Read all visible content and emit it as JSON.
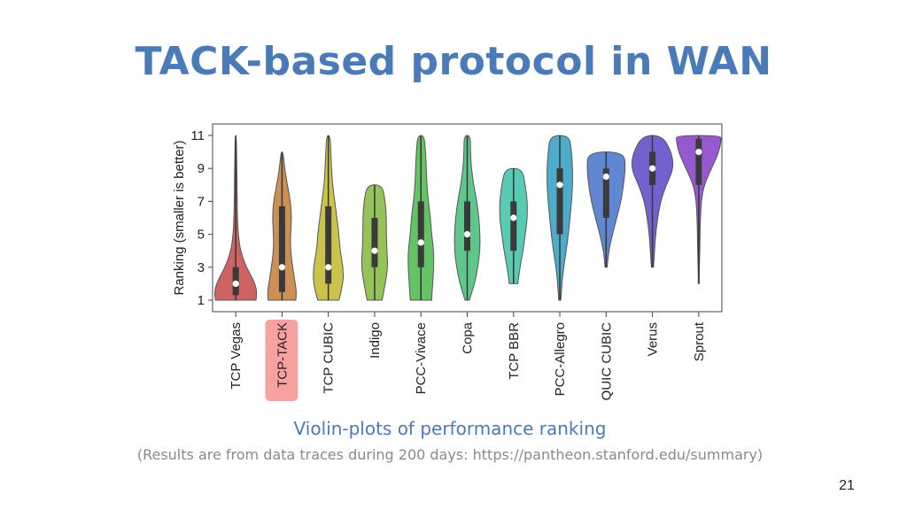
{
  "slide": {
    "title": "TACK-based protocol in WAN",
    "caption": "Violin-plots of performance ranking",
    "source": "(Results are from data traces during 200 days: https://pantheon.stanford.edu/summary)",
    "page_number": "21"
  },
  "chart_data": {
    "type": "violin",
    "title": "",
    "xlabel": "",
    "ylabel": "Ranking (smaller is better)",
    "ylim": [
      1,
      11
    ],
    "yticks": [
      1,
      3,
      5,
      7,
      9,
      11
    ],
    "grid": false,
    "highlighted_category": "TCP-TACK",
    "highlight_color": "#f7a1a1",
    "categories": [
      "TCP Vegas",
      "TCP-TACK",
      "TCP CUBIC",
      "Indigo",
      "PCC-Vivace",
      "Copa",
      "TCP BBR",
      "PCC-Allegro",
      "QUIC CUBIC",
      "Verus",
      "Sprout"
    ],
    "series": [
      {
        "category": "TCP Vegas",
        "color": "#cc5a5a",
        "median": 2,
        "q1": 1.3,
        "q3": 3,
        "min": 1,
        "max": 11,
        "density": [
          [
            1,
            0.95
          ],
          [
            1.5,
            1.0
          ],
          [
            2,
            0.9
          ],
          [
            2.5,
            0.72
          ],
          [
            3,
            0.5
          ],
          [
            4,
            0.22
          ],
          [
            5,
            0.12
          ],
          [
            6,
            0.08
          ],
          [
            7,
            0.07
          ],
          [
            8,
            0.06
          ],
          [
            9,
            0.05
          ],
          [
            10,
            0.04
          ],
          [
            11,
            0.02
          ]
        ]
      },
      {
        "category": "TCP-TACK",
        "color": "#c98a4b",
        "median": 3,
        "q1": 1.5,
        "q3": 6.7,
        "min": 1,
        "max": 10,
        "density": [
          [
            1,
            0.65
          ],
          [
            1.5,
            0.68
          ],
          [
            2,
            0.62
          ],
          [
            3,
            0.5
          ],
          [
            4,
            0.4
          ],
          [
            5,
            0.4
          ],
          [
            6,
            0.45
          ],
          [
            7,
            0.4
          ],
          [
            8,
            0.25
          ],
          [
            9,
            0.12
          ],
          [
            10,
            0.05
          ]
        ]
      },
      {
        "category": "TCP CUBIC",
        "color": "#c8c040",
        "median": 3,
        "q1": 2,
        "q3": 6.7,
        "min": 1,
        "max": 11,
        "density": [
          [
            1,
            0.5
          ],
          [
            2,
            0.7
          ],
          [
            3,
            0.7
          ],
          [
            4,
            0.55
          ],
          [
            5,
            0.5
          ],
          [
            6,
            0.4
          ],
          [
            7,
            0.3
          ],
          [
            8,
            0.2
          ],
          [
            9,
            0.15
          ],
          [
            10,
            0.12
          ],
          [
            11,
            0.08
          ]
        ]
      },
      {
        "category": "Indigo",
        "color": "#90c050",
        "median": 4,
        "q1": 3,
        "q3": 6,
        "min": 1,
        "max": 8,
        "density": [
          [
            1,
            0.35
          ],
          [
            2,
            0.5
          ],
          [
            3,
            0.62
          ],
          [
            4,
            0.58
          ],
          [
            5,
            0.55
          ],
          [
            6,
            0.55
          ],
          [
            7,
            0.5
          ],
          [
            8,
            0.35
          ]
        ]
      },
      {
        "category": "PCC-Vivace",
        "color": "#5cc05c",
        "median": 4.5,
        "q1": 3,
        "q3": 7,
        "min": 1,
        "max": 11,
        "density": [
          [
            1,
            0.5
          ],
          [
            2,
            0.55
          ],
          [
            3,
            0.6
          ],
          [
            4,
            0.6
          ],
          [
            5,
            0.5
          ],
          [
            6,
            0.45
          ],
          [
            7,
            0.35
          ],
          [
            8,
            0.28
          ],
          [
            9,
            0.25
          ],
          [
            10,
            0.22
          ],
          [
            11,
            0.15
          ]
        ]
      },
      {
        "category": "Copa",
        "color": "#55c585",
        "median": 5,
        "q1": 4,
        "q3": 7,
        "min": 1,
        "max": 11,
        "density": [
          [
            1,
            0.1
          ],
          [
            2,
            0.35
          ],
          [
            3,
            0.5
          ],
          [
            4,
            0.6
          ],
          [
            5,
            0.6
          ],
          [
            6,
            0.55
          ],
          [
            7,
            0.45
          ],
          [
            8,
            0.3
          ],
          [
            9,
            0.2
          ],
          [
            10,
            0.15
          ],
          [
            11,
            0.15
          ]
        ]
      },
      {
        "category": "TCP BBR",
        "color": "#50c8b0",
        "median": 6,
        "q1": 4,
        "q3": 7,
        "min": 2,
        "max": 9,
        "density": [
          [
            2,
            0.2
          ],
          [
            3,
            0.3
          ],
          [
            4,
            0.45
          ],
          [
            5,
            0.55
          ],
          [
            6,
            0.65
          ],
          [
            7,
            0.65
          ],
          [
            8,
            0.55
          ],
          [
            9,
            0.4
          ]
        ]
      },
      {
        "category": "PCC-Allegro",
        "color": "#45a8c8",
        "median": 8,
        "q1": 5,
        "q3": 9,
        "min": 1,
        "max": 11,
        "density": [
          [
            1,
            0.05
          ],
          [
            2,
            0.1
          ],
          [
            3,
            0.18
          ],
          [
            4,
            0.3
          ],
          [
            5,
            0.4
          ],
          [
            6,
            0.48
          ],
          [
            7,
            0.55
          ],
          [
            8,
            0.6
          ],
          [
            9,
            0.6
          ],
          [
            10,
            0.55
          ],
          [
            11,
            0.45
          ]
        ]
      },
      {
        "category": "QUIC CUBIC",
        "color": "#5880d0",
        "median": 8.5,
        "q1": 6,
        "q3": 9,
        "min": 3,
        "max": 10,
        "density": [
          [
            3,
            0.05
          ],
          [
            4,
            0.12
          ],
          [
            5,
            0.3
          ],
          [
            6,
            0.5
          ],
          [
            7,
            0.7
          ],
          [
            8,
            0.82
          ],
          [
            9,
            0.9
          ],
          [
            10,
            0.85
          ]
        ]
      },
      {
        "category": "Verus",
        "color": "#6a58cc",
        "median": 9,
        "q1": 8,
        "q3": 10,
        "min": 3,
        "max": 11,
        "density": [
          [
            3,
            0.05
          ],
          [
            4,
            0.1
          ],
          [
            5,
            0.15
          ],
          [
            6,
            0.25
          ],
          [
            7,
            0.38
          ],
          [
            8,
            0.65
          ],
          [
            9,
            1.0
          ],
          [
            10,
            0.9
          ],
          [
            11,
            0.45
          ]
        ]
      },
      {
        "category": "Sprout",
        "color": "#9050cc",
        "median": 10,
        "q1": 8,
        "q3": 10.8,
        "min": 2,
        "max": 11,
        "density": [
          [
            2,
            0.02
          ],
          [
            3,
            0.03
          ],
          [
            4,
            0.05
          ],
          [
            5,
            0.06
          ],
          [
            6,
            0.08
          ],
          [
            7,
            0.12
          ],
          [
            8,
            0.25
          ],
          [
            9,
            0.6
          ],
          [
            10,
            0.95
          ],
          [
            10.7,
            1.05
          ],
          [
            11,
            1.05
          ]
        ]
      }
    ]
  }
}
